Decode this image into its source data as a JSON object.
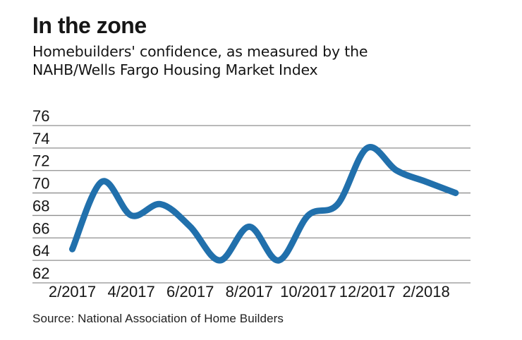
{
  "header": {
    "title": "In the zone",
    "subtitle_line1": "Homebuilders' confidence, as measured by the",
    "subtitle_line2": "NAHB/Wells Fargo Housing Market Index"
  },
  "footer": {
    "source": "Source: National Association of Home Builders"
  },
  "colors": {
    "line": "#2170ac",
    "grid": "#8f8f8f",
    "text": "#161616"
  },
  "chart_data": {
    "type": "line",
    "title": "In the zone",
    "subtitle": "Homebuilders' confidence, as measured by the NAHB/Wells Fargo Housing Market Index",
    "x": [
      "2/2017",
      "3/2017",
      "4/2017",
      "5/2017",
      "6/2017",
      "7/2017",
      "8/2017",
      "9/2017",
      "10/2017",
      "11/2017",
      "12/2017",
      "1/2018",
      "2/2018",
      "3/2018"
    ],
    "series": [
      {
        "name": "NAHB/Wells Fargo Housing Market Index",
        "values": [
          65,
          71,
          68,
          69,
          67,
          64,
          67,
          64,
          68,
          69,
          74,
          72,
          71,
          70
        ]
      }
    ],
    "ylim": [
      62,
      76
    ],
    "yticks": [
      76,
      74,
      72,
      70,
      68,
      66,
      64,
      62
    ],
    "xtick_labels": [
      "2/2017",
      "4/2017",
      "6/2017",
      "8/2017",
      "10/2017",
      "12/2017",
      "2/2018"
    ],
    "xtick_every_n_months": 2,
    "grid": "horizontal-only",
    "legend": false,
    "line_style": "smooth-thick-round-cap",
    "source": "Source: National Association of Home Builders"
  }
}
